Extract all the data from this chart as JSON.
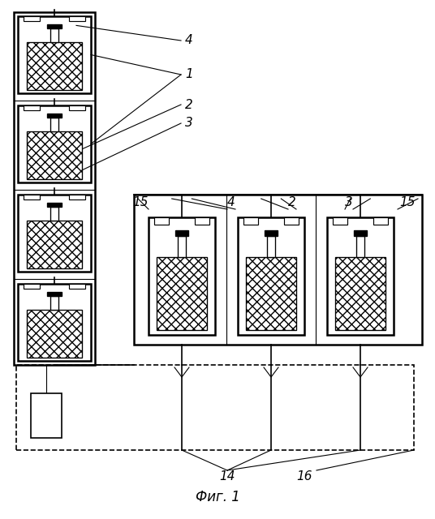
{
  "title": "Фиг. 1",
  "bg_color": "#ffffff",
  "line_color": "#000000",
  "fig_width": 5.36,
  "fig_height": 6.4,
  "dpi": 100
}
